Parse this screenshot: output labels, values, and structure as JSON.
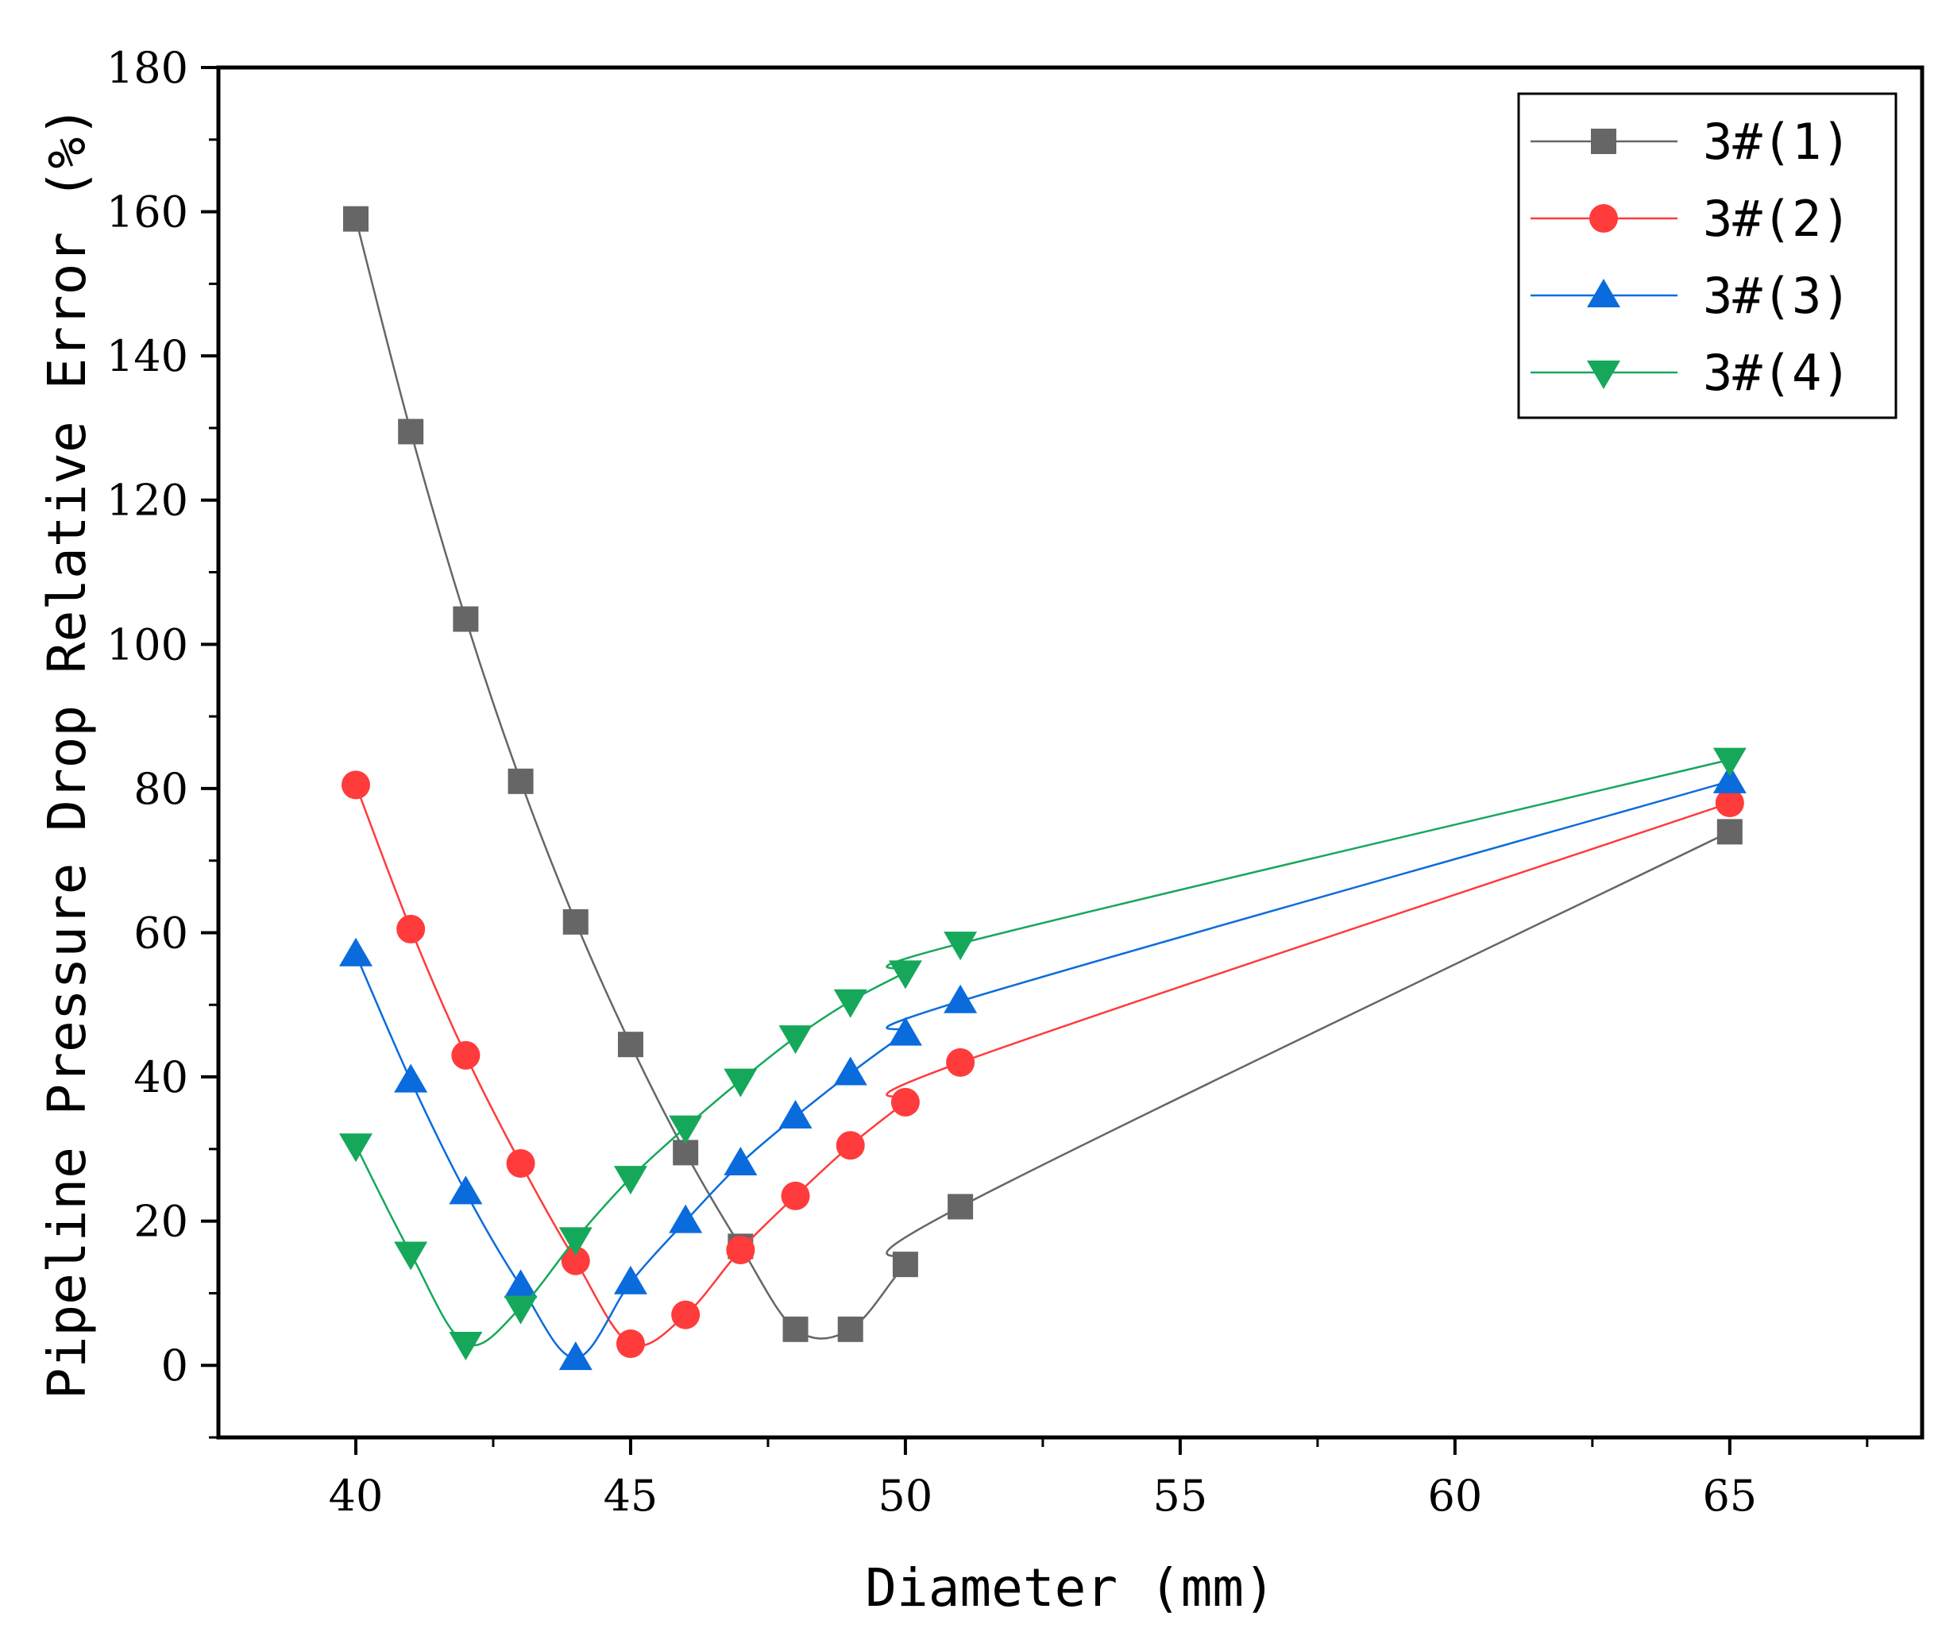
{
  "chart_data": {
    "type": "line",
    "title": "",
    "xlabel": "Diameter (mm)",
    "ylabel": "Pipeline Pressure Drop Relative Error (%)",
    "xlim": [
      37.5,
      68.5
    ],
    "ylim": [
      -10,
      180
    ],
    "xticks": [
      40,
      45,
      50,
      55,
      60,
      65
    ],
    "yticks": [
      0,
      20,
      40,
      60,
      80,
      100,
      120,
      140,
      160,
      180
    ],
    "xtick_labels": [
      "40",
      "45",
      "50",
      "55",
      "60",
      "65"
    ],
    "ytick_labels": [
      "0",
      "20",
      "40",
      "60",
      "80",
      "100",
      "120",
      "140",
      "160",
      "180"
    ],
    "grid": false,
    "legend_position": "top-right",
    "x": [
      40,
      41,
      42,
      43,
      44,
      45,
      46,
      47,
      48,
      49,
      50,
      51,
      65
    ],
    "series": [
      {
        "name": "3#(1)",
        "color": "#666666",
        "marker": "square",
        "values": [
          159,
          129.5,
          103.5,
          81,
          61.5,
          44.5,
          29.5,
          16.5,
          5,
          5,
          14,
          22,
          74
        ]
      },
      {
        "name": "3#(2)",
        "color": "#FF3B3B",
        "marker": "circle",
        "values": [
          80.5,
          60.5,
          43,
          28,
          14.5,
          3,
          7,
          16,
          23.5,
          30.5,
          36.5,
          42,
          78
        ]
      },
      {
        "name": "3#(3)",
        "color": "#0A6BDC",
        "marker": "triangle-up",
        "values": [
          57,
          39.5,
          24,
          11,
          1,
          11.5,
          20,
          28,
          34.5,
          40.5,
          46,
          50.5,
          81
        ]
      },
      {
        "name": "3#(4)",
        "color": "#16A85A",
        "marker": "triangle-down",
        "values": [
          30.5,
          15.5,
          3,
          8,
          17.5,
          26,
          33,
          39.5,
          45.5,
          50.5,
          54.5,
          58.5,
          84
        ]
      }
    ]
  }
}
